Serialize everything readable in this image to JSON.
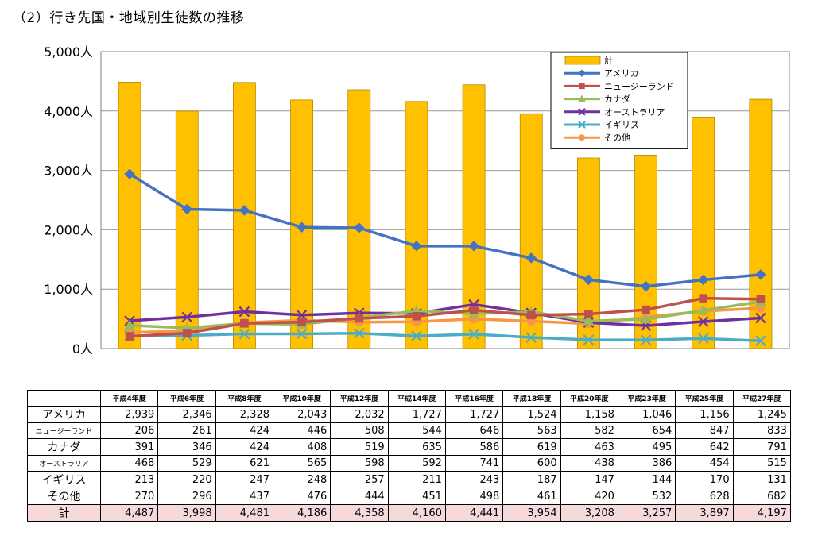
{
  "title": "（2）行き先国・地域別生徒数の推移",
  "colors": {
    "total": "#FFC000",
    "total_border": "#B38600",
    "america": "#4472C4",
    "nz": "#C0504D",
    "canada": "#9BBB59",
    "australia": "#7030A0",
    "uk": "#4BACC6",
    "other": "#F79646",
    "grid": "#999999",
    "plot_border": "#808080",
    "total_row_bg": "#F5D9DC"
  },
  "chart_data": {
    "type": "bar",
    "categories": [
      "平成4年度",
      "平成6年度",
      "平成8年度",
      "平成10年度",
      "平成12年度",
      "平成14年度",
      "平成16年度",
      "平成18年度",
      "平成20年度",
      "平成23年度",
      "平成25年度",
      "平成27年度"
    ],
    "ylim": [
      0,
      5000
    ],
    "yticks": [
      "0人",
      "1,000人",
      "2,000人",
      "3,000人",
      "4,000人",
      "5,000人"
    ],
    "grid": true,
    "legend_position": "top-right",
    "series": [
      {
        "name": "計",
        "type": "bar",
        "color": "#FFC000",
        "marker": "none",
        "values": [
          4487,
          3998,
          4481,
          4186,
          4358,
          4160,
          4441,
          3954,
          3208,
          3257,
          3897,
          4197
        ]
      },
      {
        "name": "アメリカ",
        "type": "line",
        "color": "#4472C4",
        "marker": "diamond",
        "values": [
          2939,
          2346,
          2328,
          2043,
          2032,
          1727,
          1727,
          1524,
          1158,
          1046,
          1156,
          1245
        ]
      },
      {
        "name": "ニュージーランド",
        "type": "line",
        "color": "#C0504D",
        "marker": "square",
        "values": [
          206,
          261,
          424,
          446,
          508,
          544,
          646,
          563,
          582,
          654,
          847,
          833
        ]
      },
      {
        "name": "カナダ",
        "type": "line",
        "color": "#9BBB59",
        "marker": "triangle",
        "values": [
          391,
          346,
          424,
          408,
          519,
          635,
          586,
          619,
          463,
          495,
          642,
          791
        ]
      },
      {
        "name": "オーストラリア",
        "type": "line",
        "color": "#7030A0",
        "marker": "x",
        "values": [
          468,
          529,
          621,
          565,
          598,
          592,
          741,
          600,
          438,
          386,
          454,
          515
        ]
      },
      {
        "name": "イギリス",
        "type": "line",
        "color": "#4BACC6",
        "marker": "x",
        "values": [
          213,
          220,
          247,
          248,
          257,
          211,
          243,
          187,
          147,
          144,
          170,
          131
        ]
      },
      {
        "name": "その他",
        "type": "line",
        "color": "#F79646",
        "marker": "circle",
        "values": [
          270,
          296,
          437,
          476,
          444,
          451,
          498,
          461,
          420,
          532,
          628,
          682
        ]
      }
    ]
  },
  "table": {
    "headers": [
      "平成4年度",
      "平成6年度",
      "平成8年度",
      "平成10年度",
      "平成12年度",
      "平成14年度",
      "平成16年度",
      "平成18年度",
      "平成20年度",
      "平成23年度",
      "平成25年度",
      "平成27年度"
    ],
    "rows": [
      {
        "label": "アメリカ",
        "small": false,
        "total": false,
        "cells": [
          "2,939",
          "2,346",
          "2,328",
          "2,043",
          "2,032",
          "1,727",
          "1,727",
          "1,524",
          "1,158",
          "1,046",
          "1,156",
          "1,245"
        ]
      },
      {
        "label": "ニュージーランド",
        "small": true,
        "total": false,
        "cells": [
          "206",
          "261",
          "424",
          "446",
          "508",
          "544",
          "646",
          "563",
          "582",
          "654",
          "847",
          "833"
        ]
      },
      {
        "label": "カナダ",
        "small": false,
        "total": false,
        "cells": [
          "391",
          "346",
          "424",
          "408",
          "519",
          "635",
          "586",
          "619",
          "463",
          "495",
          "642",
          "791"
        ]
      },
      {
        "label": "オーストラリア",
        "small": true,
        "total": false,
        "cells": [
          "468",
          "529",
          "621",
          "565",
          "598",
          "592",
          "741",
          "600",
          "438",
          "386",
          "454",
          "515"
        ]
      },
      {
        "label": "イギリス",
        "small": false,
        "total": false,
        "cells": [
          "213",
          "220",
          "247",
          "248",
          "257",
          "211",
          "243",
          "187",
          "147",
          "144",
          "170",
          "131"
        ]
      },
      {
        "label": "その他",
        "small": false,
        "total": false,
        "cells": [
          "270",
          "296",
          "437",
          "476",
          "444",
          "451",
          "498",
          "461",
          "420",
          "532",
          "628",
          "682"
        ]
      },
      {
        "label": "計",
        "small": false,
        "total": true,
        "cells": [
          "4,487",
          "3,998",
          "4,481",
          "4,186",
          "4,358",
          "4,160",
          "4,441",
          "3,954",
          "3,208",
          "3,257",
          "3,897",
          "4,197"
        ]
      }
    ]
  }
}
